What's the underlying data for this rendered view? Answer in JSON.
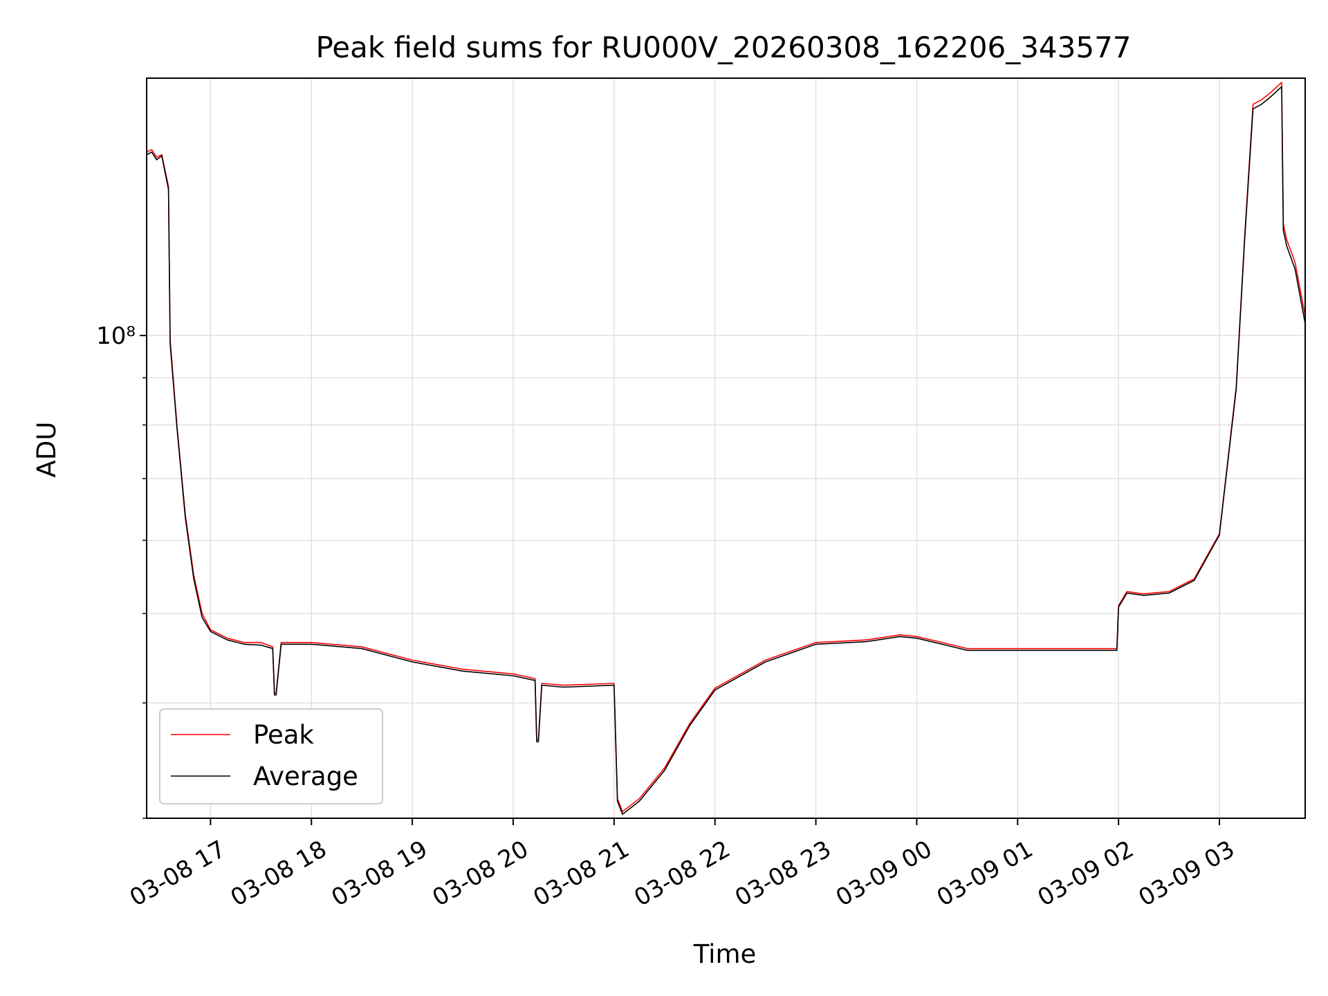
{
  "chart_data": {
    "type": "line",
    "title": "Peak field sums for RU000V_20260308_162206_343577",
    "xlabel": "Time",
    "ylabel": "ADU",
    "y_scale": "log",
    "y_tick_label": "10⁸",
    "y_tick_value": 100000000,
    "ylim": [
      30000000,
      190000000
    ],
    "xlim": [
      "2026-03-08 16:22",
      "2026-03-09 03:51"
    ],
    "x_tick_labels": [
      "03-08 17",
      "03-08 18",
      "03-08 19",
      "03-08 20",
      "03-08 21",
      "03-08 22",
      "03-08 23",
      "03-09 00",
      "03-09 01",
      "03-09 02",
      "03-09 03"
    ],
    "x_tick_times": [
      "2026-03-08 17:00",
      "2026-03-08 18:00",
      "2026-03-08 19:00",
      "2026-03-08 20:00",
      "2026-03-08 21:00",
      "2026-03-08 22:00",
      "2026-03-08 23:00",
      "2026-03-09 00:00",
      "2026-03-09 01:00",
      "2026-03-09 02:00",
      "2026-03-09 03:00"
    ],
    "legend_position": "lower-left",
    "grid": true,
    "x": [
      "2026-03-08 16:22",
      "2026-03-08 16:25",
      "2026-03-08 16:28",
      "2026-03-08 16:31",
      "2026-03-08 16:35",
      "2026-03-08 16:36",
      "2026-03-08 16:40",
      "2026-03-08 16:45",
      "2026-03-08 16:50",
      "2026-03-08 16:55",
      "2026-03-08 17:00",
      "2026-03-08 17:10",
      "2026-03-08 17:20",
      "2026-03-08 17:30",
      "2026-03-08 17:37",
      "2026-03-08 17:38",
      "2026-03-08 17:39",
      "2026-03-08 17:42",
      "2026-03-08 18:00",
      "2026-03-08 18:30",
      "2026-03-08 19:00",
      "2026-03-08 19:30",
      "2026-03-08 20:00",
      "2026-03-08 20:13",
      "2026-03-08 20:14",
      "2026-03-08 20:15",
      "2026-03-08 20:17",
      "2026-03-08 20:30",
      "2026-03-08 21:00",
      "2026-03-08 21:02",
      "2026-03-08 21:05",
      "2026-03-08 21:15",
      "2026-03-08 21:30",
      "2026-03-08 21:45",
      "2026-03-08 22:00",
      "2026-03-08 22:30",
      "2026-03-08 23:00",
      "2026-03-08 23:30",
      "2026-03-08 23:50",
      "2026-03-09 00:00",
      "2026-03-09 00:15",
      "2026-03-09 00:30",
      "2026-03-09 01:00",
      "2026-03-09 01:30",
      "2026-03-09 01:59",
      "2026-03-09 02:00",
      "2026-03-09 02:05",
      "2026-03-09 02:15",
      "2026-03-09 02:30",
      "2026-03-09 02:45",
      "2026-03-09 03:00",
      "03-09 03:10",
      "2026-03-09 03:15",
      "2026-03-09 03:20",
      "2026-03-09 03:25",
      "2026-03-09 03:30",
      "2026-03-09 03:37",
      "2026-03-09 03:38",
      "2026-03-09 03:40",
      "2026-03-09 03:45",
      "2026-03-09 03:51"
    ],
    "series": [
      {
        "name": "Peak",
        "color": "#ff0000",
        "values": [
          158000000,
          159000000,
          156000000,
          157000000,
          145000000,
          99000000,
          80000000,
          64000000,
          55000000,
          50000000,
          48000000,
          47000000,
          46500000,
          46500000,
          46000000,
          41000000,
          41000000,
          46500000,
          46500000,
          46000000,
          44500000,
          43500000,
          43000000,
          42500000,
          36500000,
          36500000,
          42000000,
          41800000,
          42000000,
          31500000,
          30500000,
          31500000,
          34000000,
          38000000,
          41500000,
          44500000,
          46500000,
          46800000,
          47400000,
          47200000,
          46500000,
          45800000,
          45800000,
          45800000,
          45800000,
          51000000,
          52800000,
          52500000,
          52800000,
          54500000,
          61000000,
          88000000,
          128000000,
          178000000,
          180000000,
          183000000,
          188000000,
          132000000,
          127000000,
          120000000,
          105000000
        ]
      },
      {
        "name": "Average",
        "color": "#000000",
        "values": [
          157000000,
          158000000,
          155000000,
          156500000,
          144000000,
          98000000,
          79500000,
          63500000,
          54500000,
          49500000,
          47800000,
          46800000,
          46300000,
          46200000,
          45800000,
          40800000,
          40800000,
          46300000,
          46300000,
          45800000,
          44300000,
          43300000,
          42800000,
          42300000,
          36300000,
          36300000,
          41800000,
          41600000,
          41800000,
          31300000,
          30300000,
          31300000,
          33800000,
          37800000,
          41300000,
          44300000,
          46300000,
          46600000,
          47200000,
          47000000,
          46300000,
          45600000,
          45600000,
          45600000,
          45600000,
          50800000,
          52600000,
          52300000,
          52600000,
          54300000,
          60800000,
          87500000,
          127000000,
          176000000,
          178000000,
          181000000,
          186000000,
          130000000,
          125000000,
          118000000,
          103000000
        ]
      }
    ]
  }
}
